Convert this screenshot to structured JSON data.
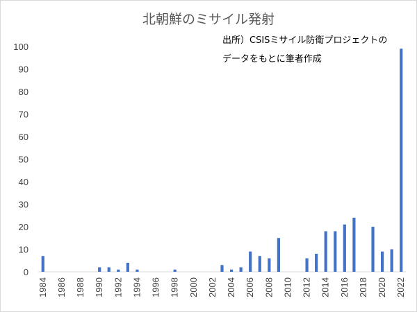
{
  "chart_data": {
    "type": "bar",
    "title": "北朝鮮のミサイル発射",
    "annotation_lines": [
      "出所）CSISミサイル防衛プロジェクトの",
      "データをもとに筆者作成"
    ],
    "xlabel": "",
    "ylabel": "",
    "ylim": [
      0,
      100
    ],
    "yticks": [
      0,
      10,
      20,
      30,
      40,
      50,
      60,
      70,
      80,
      90,
      100
    ],
    "grid": false,
    "categories": [
      "1984",
      "1985",
      "1986",
      "1987",
      "1988",
      "1989",
      "1990",
      "1991",
      "1992",
      "1993",
      "1994",
      "1995",
      "1996",
      "1997",
      "1998",
      "1999",
      "2000",
      "2001",
      "2002",
      "2003",
      "2004",
      "2005",
      "2006",
      "2007",
      "2008",
      "2009",
      "2010",
      "2011",
      "2012",
      "2013",
      "2014",
      "2015",
      "2016",
      "2017",
      "2018",
      "2019",
      "2020",
      "2021",
      "2022"
    ],
    "xtick_labels": [
      "1984",
      "1986",
      "1988",
      "1990",
      "1992",
      "1994",
      "1996",
      "1998",
      "2000",
      "2002",
      "2004",
      "2006",
      "2008",
      "2010",
      "2012",
      "2014",
      "2016",
      "2018",
      "2020",
      "2022"
    ],
    "values": [
      7,
      0,
      0,
      0,
      0,
      0,
      2,
      2,
      1,
      4,
      1,
      0,
      0,
      0,
      1,
      0,
      0,
      0,
      0,
      3,
      1,
      2,
      9,
      7,
      6,
      15,
      0,
      0,
      6,
      8,
      18,
      18,
      21,
      24,
      0,
      20,
      9,
      10,
      99
    ],
    "bar_color": "#4472C4"
  }
}
